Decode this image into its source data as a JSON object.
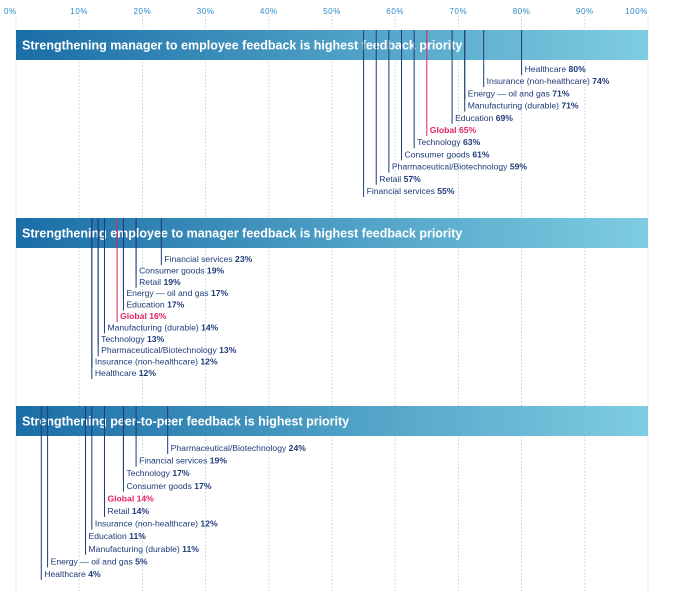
{
  "colors": {
    "axis_text": "#2b8ac4",
    "grid": "#9fc4da",
    "bar_start": "#1a6ea6",
    "bar_end": "#7ecde2",
    "leader": "#1e3a78",
    "label": "#1e3a78",
    "highlight": "#e0245e"
  },
  "chart_data": [
    {
      "type": "bar",
      "title": "Strengthening manager to employee feedback is highest feedback priority",
      "xlim": [
        0,
        100
      ],
      "x_ticks": [
        "0%",
        "10%",
        "20%",
        "30%",
        "40%",
        "50%",
        "60%",
        "70%",
        "80%",
        "90%",
        "100%"
      ],
      "highlight": "Global",
      "grid": true,
      "series": [
        {
          "category": "Healthcare",
          "value": 80,
          "label": "80%"
        },
        {
          "category": "Insurance (non-healthcare)",
          "value": 74,
          "label": "74%"
        },
        {
          "category": "Energy — oil and gas",
          "value": 71,
          "label": "71%"
        },
        {
          "category": "Manufacturing (durable)",
          "value": 71,
          "label": "71%"
        },
        {
          "category": "Education",
          "value": 69,
          "label": "69%"
        },
        {
          "category": "Global",
          "value": 65,
          "label": "65%"
        },
        {
          "category": "Technology",
          "value": 63,
          "label": "63%"
        },
        {
          "category": "Consumer goods",
          "value": 61,
          "label": "61%"
        },
        {
          "category": "Pharmaceutical/Biotechnology",
          "value": 59,
          "label": "59%"
        },
        {
          "category": "Retail",
          "value": 57,
          "label": "57%"
        },
        {
          "category": "Financial services",
          "value": 55,
          "label": "55%"
        }
      ]
    },
    {
      "type": "bar",
      "title": "Strengthening employee to manager feedback is highest feedback priority",
      "xlim": [
        0,
        100
      ],
      "highlight": "Global",
      "grid": true,
      "series": [
        {
          "category": "Financial services",
          "value": 23,
          "label": "23%"
        },
        {
          "category": "Consumer goods",
          "value": 19,
          "label": "19%"
        },
        {
          "category": "Retail",
          "value": 19,
          "label": "19%"
        },
        {
          "category": "Energy — oil and gas",
          "value": 17,
          "label": "17%"
        },
        {
          "category": "Education",
          "value": 17,
          "label": "17%"
        },
        {
          "category": "Global",
          "value": 16,
          "label": "16%"
        },
        {
          "category": "Manufacturing (durable)",
          "value": 14,
          "label": "14%"
        },
        {
          "category": "Technology",
          "value": 13,
          "label": "13%"
        },
        {
          "category": "Pharmaceutical/Biotechnology",
          "value": 13,
          "label": "13%"
        },
        {
          "category": "Insurance (non-healthcare)",
          "value": 12,
          "label": "12%"
        },
        {
          "category": "Healthcare",
          "value": 12,
          "label": "12%"
        }
      ]
    },
    {
      "type": "bar",
      "title": "Strengthening peer-to-peer feedback is highest priority",
      "xlim": [
        0,
        100
      ],
      "highlight": "Global",
      "grid": true,
      "series": [
        {
          "category": "Pharmaceutical/Biotechnology",
          "value": 24,
          "label": "24%"
        },
        {
          "category": "Financial services",
          "value": 19,
          "label": "19%"
        },
        {
          "category": "Technology",
          "value": 17,
          "label": "17%"
        },
        {
          "category": "Consumer goods",
          "value": 17,
          "label": "17%"
        },
        {
          "category": "Global",
          "value": 14,
          "label": "14%"
        },
        {
          "category": "Retail",
          "value": 14,
          "label": "14%"
        },
        {
          "category": "Insurance (non-healthcare)",
          "value": 12,
          "label": "12%"
        },
        {
          "category": "Education",
          "value": 11,
          "label": "11%"
        },
        {
          "category": "Manufacturing (durable)",
          "value": 11,
          "label": "11%"
        },
        {
          "category": "Energy — oil and gas",
          "value": 5,
          "label": "5%"
        },
        {
          "category": "Healthcare",
          "value": 4,
          "label": "4%"
        }
      ]
    }
  ]
}
